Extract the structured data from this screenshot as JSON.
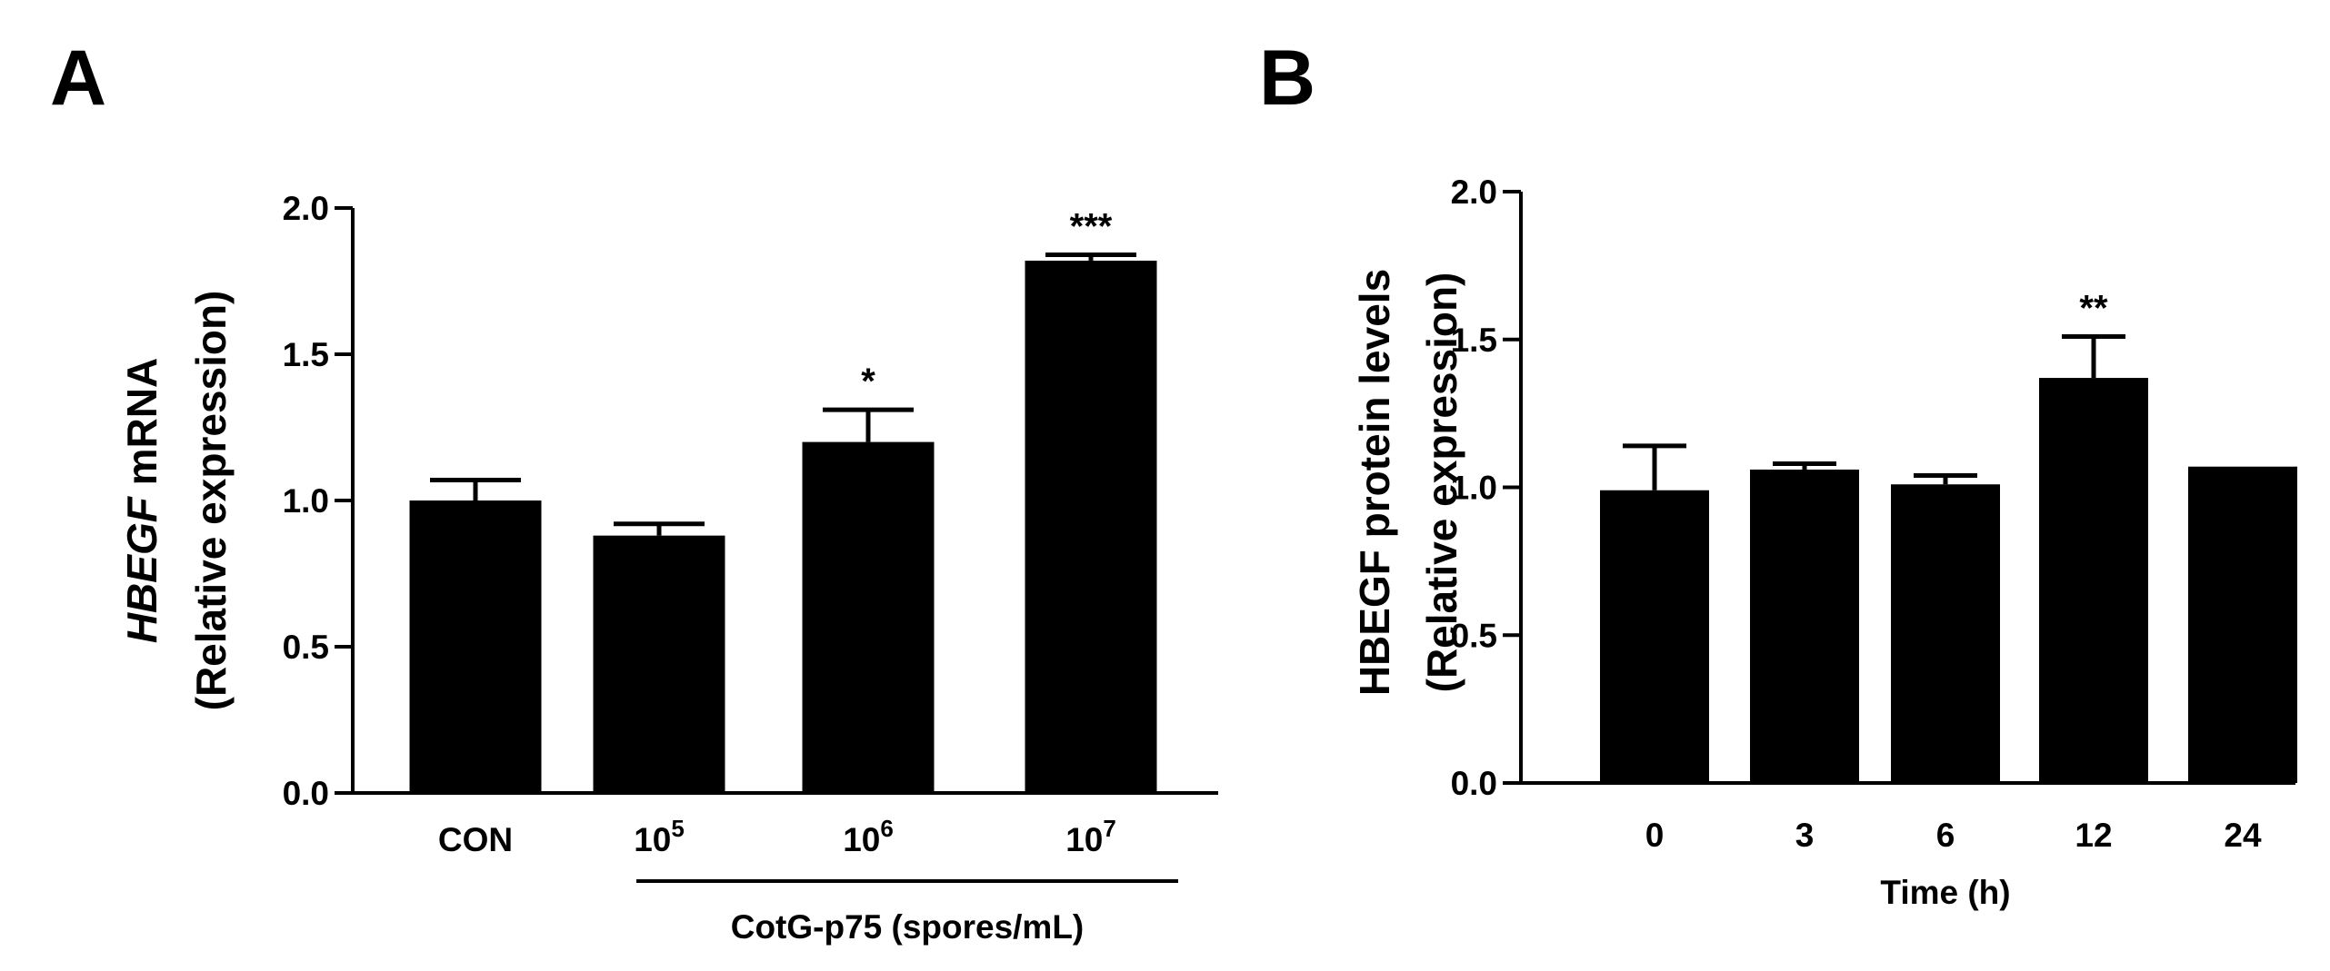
{
  "colors": {
    "bar": "#000000",
    "axis": "#000000",
    "background": "#ffffff"
  },
  "chart_data": [
    {
      "panel": "A",
      "type": "bar",
      "title": "",
      "ylabel_gene": "HBEGF",
      "ylabel_rest": " mRNA",
      "ylabel_line2": "(Relative expression)",
      "xlabel": "",
      "group_label": "CotG-p75 (spores/mL)",
      "ylim": [
        0,
        2.0
      ],
      "yticks": [
        "0.0",
        "0.5",
        "1.0",
        "1.5",
        "2.0"
      ],
      "categories": [
        {
          "base": "CON",
          "exp": ""
        },
        {
          "base": "10",
          "exp": "5"
        },
        {
          "base": "10",
          "exp": "6"
        },
        {
          "base": "10",
          "exp": "7"
        }
      ],
      "values": [
        1.0,
        0.88,
        1.2,
        1.82
      ],
      "errors": [
        0.07,
        0.04,
        0.11,
        0.02
      ],
      "significance": [
        "",
        "",
        "*",
        "***"
      ],
      "grid": false
    },
    {
      "panel": "B",
      "type": "bar",
      "title": "",
      "ylabel": "HBEGF protein levels",
      "ylabel_line2": "(Relative expression)",
      "xlabel": "Time (h)",
      "ylim": [
        0,
        2.0
      ],
      "yticks": [
        "0.0",
        "0.5",
        "1.0",
        "1.5",
        "2.0"
      ],
      "categories": [
        "0",
        "3",
        "6",
        "12",
        "24"
      ],
      "values": [
        0.99,
        1.06,
        1.01,
        1.37,
        1.07
      ],
      "errors": [
        0.15,
        0.02,
        0.03,
        0.14,
        0.0
      ],
      "significance": [
        "",
        "",
        "",
        "**",
        ""
      ],
      "grid": false
    }
  ]
}
